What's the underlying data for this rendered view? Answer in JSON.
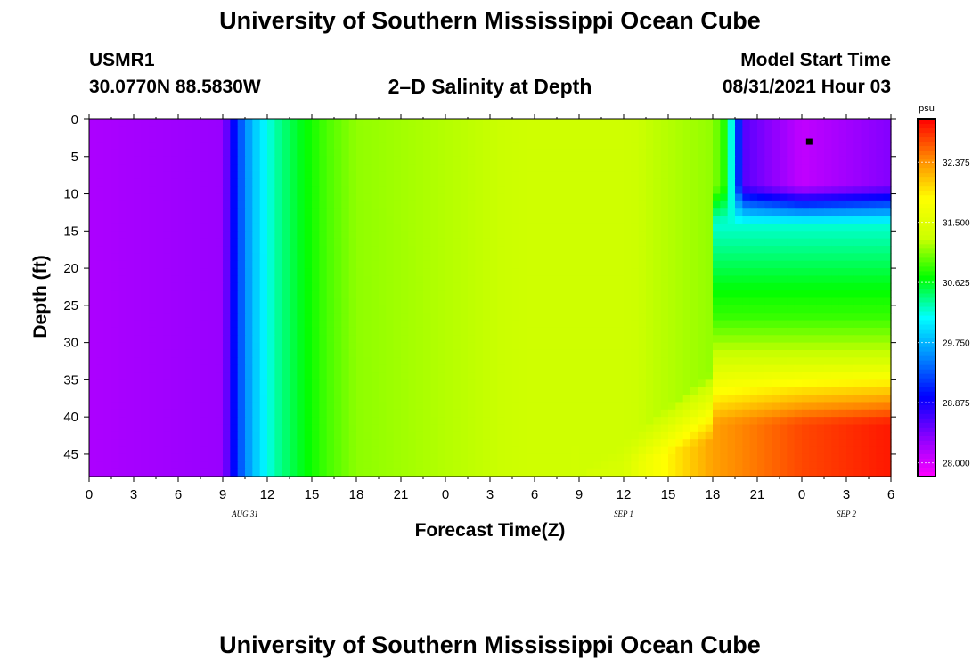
{
  "header": {
    "title": "University of Southern Mississippi Ocean Cube",
    "station_id": "USMR1",
    "station_location": "30.0770N  88.5830W",
    "plot_title": "2–D Salinity at Depth",
    "model_start_label": "Model Start Time",
    "model_start_value": "08/31/2021 Hour 03"
  },
  "footer": {
    "title": "University of Southern Mississippi Ocean Cube"
  },
  "chart_data": {
    "type": "heatmap",
    "title": "2–D Salinity at Depth",
    "xlabel": "Forecast Time(Z)",
    "ylabel": "Depth (ft)",
    "x_ticks": [
      "0",
      "3",
      "6",
      "9",
      "12",
      "15",
      "18",
      "21",
      "0",
      "3",
      "6",
      "9",
      "12",
      "15",
      "18",
      "21",
      "0",
      "3",
      "6"
    ],
    "x_date_labels": [
      {
        "label": "AUG 31",
        "at_tick_index": 3.5
      },
      {
        "label": "SEP 1",
        "at_tick_index": 12
      },
      {
        "label": "SEP 2",
        "at_tick_index": 17
      }
    ],
    "x_range_hours": [
      0,
      54
    ],
    "y_ticks": [
      0,
      5,
      10,
      15,
      20,
      25,
      30,
      35,
      40,
      45
    ],
    "ylim": [
      0,
      48
    ],
    "y_inverted": true,
    "colorbar": {
      "unit": "psu",
      "range": [
        27.8,
        33.0
      ],
      "tick_values": [
        28.0,
        28.875,
        29.75,
        30.625,
        31.5,
        32.375
      ],
      "tick_labels": [
        "28.000",
        "28.875",
        "29.750",
        "30.625",
        "31.500",
        "32.375"
      ],
      "colors": [
        "#ff00ff",
        "#8800ff",
        "#0000ff",
        "#0088ff",
        "#00ffff",
        "#00ff00",
        "#ccff00",
        "#ffff00",
        "#ff8800",
        "#ff0000"
      ]
    },
    "marker": {
      "hour": 48.5,
      "depth_ft": 3
    },
    "field_description_values_psu": {
      "surface_profile_hours": [
        0,
        9,
        10,
        11,
        12.5,
        14,
        16,
        18,
        24,
        30,
        36,
        42,
        43,
        44,
        48,
        54
      ],
      "surface_profile_values": [
        28.2,
        28.3,
        29.2,
        29.8,
        30.3,
        30.6,
        30.9,
        31.1,
        31.2,
        31.3,
        31.3,
        31.1,
        30.7,
        28.6,
        28.1,
        28.4
      ],
      "bottom_profile_hours": [
        0,
        9,
        10,
        12.5,
        18,
        24,
        30,
        36,
        37,
        42,
        48,
        54
      ],
      "bottom_profile_values": [
        28.2,
        28.3,
        29.2,
        30.3,
        31.0,
        31.2,
        31.3,
        31.4,
        31.6,
        32.3,
        32.7,
        32.9
      ]
    }
  },
  "colors": {
    "background": "#ffffff",
    "axis": "#000000",
    "marker": "#000000"
  }
}
